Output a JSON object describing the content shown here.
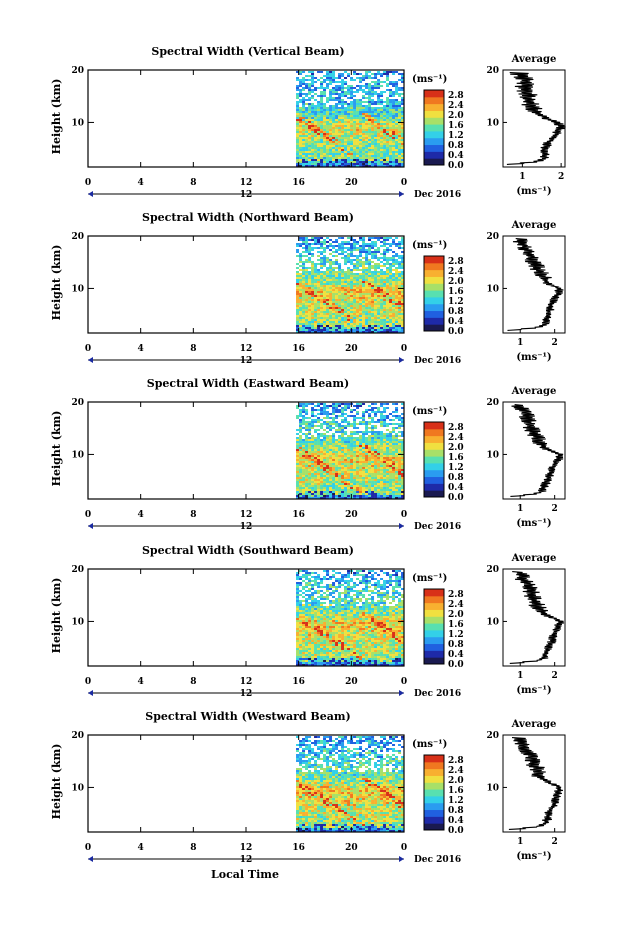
{
  "chart_data": [
    {
      "type": "heatmap",
      "title": "Spectral Width (Vertical Beam)",
      "ylabel": "Height (km)",
      "xlabel": "Local Time",
      "x_ticks": [
        "0",
        "4",
        "8",
        "12",
        "16",
        "20",
        "0"
      ],
      "x_range_hours": [
        0,
        24
      ],
      "data_start_hour": 15.8,
      "y_range_km": [
        1.5,
        20
      ],
      "y_ticks": [
        "20",
        "10"
      ],
      "second_axis_tick": "12",
      "date_label": "Dec 2016",
      "colorbar": {
        "unit": "(ms⁻¹)",
        "ticks": [
          "2.8",
          "2.4",
          "2.0",
          "1.6",
          "1.2",
          "0.8",
          "0.4",
          "0.0"
        ],
        "range": [
          0,
          3.0
        ]
      },
      "average_profile": {
        "title": "Average",
        "xlabel": "(ms⁻¹)",
        "x_ticks": [
          "1",
          "2"
        ],
        "x_range": [
          0.5,
          2.1
        ],
        "y_ticks": [
          "20",
          "10"
        ],
        "heights_km": [
          2,
          2.5,
          3,
          4,
          5,
          6,
          7,
          8,
          9,
          10,
          11,
          12,
          13,
          14,
          15,
          16,
          17,
          18,
          19,
          19.5
        ],
        "values": [
          0.7,
          1.4,
          1.55,
          1.6,
          1.6,
          1.65,
          1.8,
          1.9,
          2.0,
          1.9,
          1.55,
          1.35,
          1.25,
          1.15,
          1.15,
          1.1,
          1.05,
          1.1,
          0.95,
          0.9
        ]
      }
    },
    {
      "type": "heatmap",
      "title": "Spectral Width (Northward Beam)",
      "ylabel": "Height (km)",
      "xlabel": "Local Time",
      "x_ticks": [
        "0",
        "4",
        "8",
        "12",
        "16",
        "20",
        "0"
      ],
      "x_range_hours": [
        0,
        24
      ],
      "data_start_hour": 15.8,
      "y_range_km": [
        1.5,
        20
      ],
      "y_ticks": [
        "20",
        "10"
      ],
      "second_axis_tick": "12",
      "date_label": "Dec 2016",
      "colorbar": {
        "unit": "(ms⁻¹)",
        "ticks": [
          "2.8",
          "2.4",
          "2.0",
          "1.6",
          "1.2",
          "0.8",
          "0.4",
          "0.0"
        ],
        "range": [
          0,
          3.0
        ]
      },
      "average_profile": {
        "title": "Average",
        "xlabel": "(ms⁻¹)",
        "x_ticks": [
          "1",
          "2"
        ],
        "x_range": [
          0.5,
          2.3
        ],
        "y_ticks": [
          "20",
          "10"
        ],
        "heights_km": [
          2,
          2.5,
          3,
          4,
          5,
          6,
          7,
          8,
          9,
          10,
          11,
          12,
          13,
          14,
          15,
          16,
          17,
          18,
          19,
          19.5
        ],
        "values": [
          0.7,
          1.5,
          1.7,
          1.75,
          1.8,
          1.85,
          1.9,
          2.0,
          2.1,
          2.15,
          1.8,
          1.7,
          1.6,
          1.5,
          1.4,
          1.3,
          1.2,
          1.15,
          1.0,
          0.95
        ]
      }
    },
    {
      "type": "heatmap",
      "title": "Spectral Width (Eastward Beam)",
      "ylabel": "Height (km)",
      "xlabel": "Local Time",
      "x_ticks": [
        "0",
        "4",
        "8",
        "12",
        "16",
        "20",
        "0"
      ],
      "x_range_hours": [
        0,
        24
      ],
      "data_start_hour": 15.8,
      "y_range_km": [
        1.5,
        20
      ],
      "y_ticks": [
        "20",
        "10"
      ],
      "second_axis_tick": "12",
      "date_label": "Dec 2016",
      "colorbar": {
        "unit": "(ms⁻¹)",
        "ticks": [
          "2.8",
          "2.4",
          "2.0",
          "1.6",
          "1.2",
          "0.8",
          "0.4",
          "0.0"
        ],
        "range": [
          0,
          3.0
        ]
      },
      "average_profile": {
        "title": "Average",
        "xlabel": "(ms⁻¹)",
        "x_ticks": [
          "1",
          "2"
        ],
        "x_range": [
          0.5,
          2.3
        ],
        "y_ticks": [
          "20",
          "10"
        ],
        "heights_km": [
          2,
          2.5,
          3,
          4,
          5,
          6,
          7,
          8,
          9,
          10,
          11,
          12,
          13,
          14,
          15,
          16,
          17,
          18,
          19,
          19.5
        ],
        "values": [
          0.8,
          1.5,
          1.65,
          1.7,
          1.8,
          1.85,
          1.9,
          2.0,
          2.1,
          2.15,
          1.75,
          1.6,
          1.5,
          1.4,
          1.3,
          1.25,
          1.2,
          1.15,
          1.0,
          0.95
        ]
      }
    },
    {
      "type": "heatmap",
      "title": "Spectral Width (Southward Beam)",
      "ylabel": "Height (km)",
      "xlabel": "Local Time",
      "x_ticks": [
        "0",
        "4",
        "8",
        "12",
        "16",
        "20",
        "0"
      ],
      "x_range_hours": [
        0,
        24
      ],
      "data_start_hour": 15.8,
      "y_range_km": [
        1.5,
        20
      ],
      "y_ticks": [
        "20",
        "10"
      ],
      "second_axis_tick": "12",
      "date_label": "Dec 2016",
      "colorbar": {
        "unit": "(ms⁻¹)",
        "ticks": [
          "2.8",
          "2.4",
          "2.0",
          "1.6",
          "1.2",
          "0.8",
          "0.4",
          "0.0"
        ],
        "range": [
          0,
          3.0
        ]
      },
      "average_profile": {
        "title": "Average",
        "xlabel": "(ms⁻¹)",
        "x_ticks": [
          "1",
          "2"
        ],
        "x_range": [
          0.5,
          2.3
        ],
        "y_ticks": [
          "20",
          "10"
        ],
        "heights_km": [
          2,
          2.5,
          3,
          4,
          5,
          6,
          7,
          8,
          9,
          10,
          11,
          12,
          13,
          14,
          15,
          16,
          17,
          18,
          19,
          19.5
        ],
        "values": [
          0.8,
          1.5,
          1.7,
          1.75,
          1.8,
          1.9,
          1.95,
          2.0,
          2.1,
          2.2,
          1.8,
          1.6,
          1.5,
          1.4,
          1.35,
          1.3,
          1.2,
          1.1,
          1.0,
          0.95
        ]
      }
    },
    {
      "type": "heatmap",
      "title": "Spectral Width (Westward Beam)",
      "ylabel": "Height (km)",
      "xlabel": "Local Time",
      "x_ticks": [
        "0",
        "4",
        "8",
        "12",
        "16",
        "20",
        "0"
      ],
      "x_range_hours": [
        0,
        24
      ],
      "data_start_hour": 15.8,
      "y_range_km": [
        1.5,
        20
      ],
      "y_ticks": [
        "20",
        "10"
      ],
      "second_axis_tick": "12",
      "date_label": "Dec 2016",
      "colorbar": {
        "unit": "(ms⁻¹)",
        "ticks": [
          "2.8",
          "2.4",
          "2.0",
          "1.6",
          "1.2",
          "0.8",
          "0.4",
          "0.0"
        ],
        "range": [
          0,
          3.0
        ]
      },
      "average_profile": {
        "title": "Average",
        "xlabel": "(ms⁻¹)",
        "x_ticks": [
          "1",
          "2"
        ],
        "x_range": [
          0.5,
          2.3
        ],
        "y_ticks": [
          "20",
          "10"
        ],
        "heights_km": [
          2,
          2.5,
          3,
          4,
          5,
          6,
          7,
          8,
          9,
          10,
          11,
          12,
          13,
          14,
          15,
          16,
          17,
          18,
          19,
          19.5
        ],
        "values": [
          0.8,
          1.5,
          1.7,
          1.8,
          1.8,
          1.9,
          2.0,
          2.05,
          2.1,
          2.15,
          1.8,
          1.6,
          1.5,
          1.45,
          1.35,
          1.3,
          1.2,
          1.1,
          1.0,
          0.95
        ]
      }
    }
  ],
  "figure": {
    "xlabel_bottom": "Local Time"
  },
  "colormap": [
    "#1a1a50",
    "#1e2aa8",
    "#2060e0",
    "#2a9cf0",
    "#33d0e8",
    "#58e0b0",
    "#a8e068",
    "#f0e040",
    "#f8b030",
    "#f07820",
    "#d83018"
  ]
}
